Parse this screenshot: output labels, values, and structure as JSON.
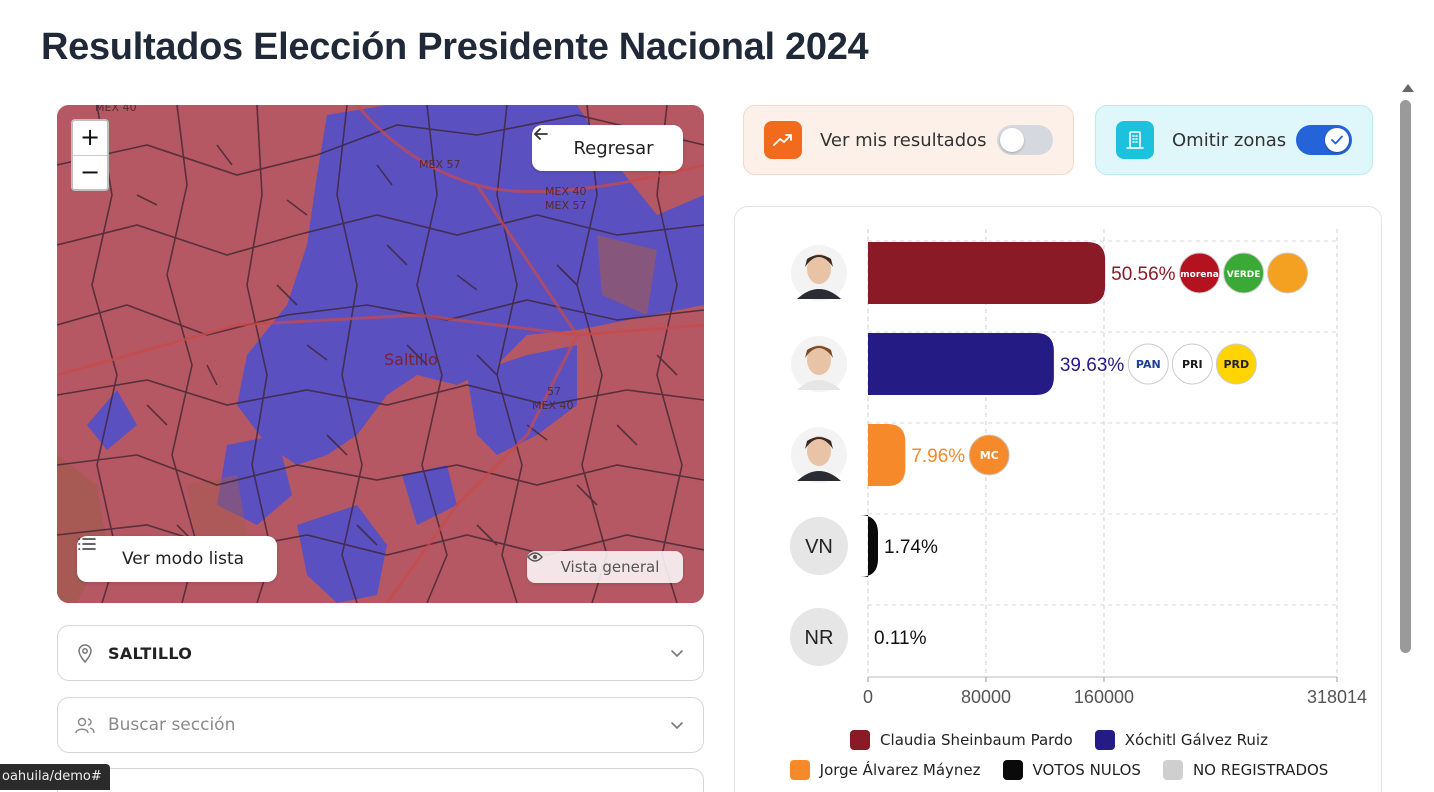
{
  "page": {
    "title": "Resultados Elección Presidente Nacional 2024"
  },
  "map": {
    "zoom_in": "+",
    "zoom_out": "−",
    "back_label": "Regresar",
    "list_mode_label": "Ver modo lista",
    "general_view_label": "Vista general",
    "city_label": "Saltillo",
    "road_labels": [
      "MEX 40",
      "MEX 57",
      "MEX 40",
      "MEX 57",
      "57",
      "MEX 40"
    ],
    "colors": {
      "winner_1": "#b8535f",
      "winner_2": "#5a4fbf"
    }
  },
  "filters": {
    "municipio_value": "SALTILLO",
    "seccion_placeholder": "Buscar sección",
    "location_icon": "location-pin-icon",
    "people_icon": "users-icon"
  },
  "status_bar": {
    "url": "oahuila/demo#"
  },
  "toggles": {
    "results": {
      "label": "Ver mis resultados",
      "on": false,
      "icon": "trending-up-icon",
      "color": "#f26b1d"
    },
    "zones": {
      "label": "Omitir zonas",
      "on": true,
      "icon": "building-icon",
      "color": "#1cc1de"
    }
  },
  "chart_data": {
    "type": "bar",
    "orientation": "horizontal",
    "categories": [
      "Claudia Sheinbaum Pardo",
      "Xóchitl Gálvez Ruiz",
      "Jorge Álvarez Máynez",
      "VOTOS NULOS",
      "NO REGISTRADOS"
    ],
    "percent_labels": [
      "50.56%",
      "39.63%",
      "7.96%",
      "1.74%",
      "0.11%"
    ],
    "percents": [
      50.56,
      39.63,
      7.96,
      1.74,
      0.11
    ],
    "colors": [
      "#8b1a27",
      "#241b85",
      "#f6892a",
      "#0a0a0a",
      "#cfcfcf"
    ],
    "label_colors": [
      "#8b1a27",
      "#241b85",
      "#f6892a",
      "#111111",
      "#111111"
    ],
    "avatar_text": [
      "",
      "",
      "",
      "VN",
      "NR"
    ],
    "party_logos": [
      [
        "morena",
        "VERDE",
        ""
      ],
      [
        "PAN",
        "PRI",
        "PRD"
      ],
      [
        "MC"
      ],
      [],
      []
    ],
    "x_ticks": [
      "0",
      "80000",
      "160000",
      "318014"
    ],
    "x_tick_values": [
      0,
      80000,
      160000,
      318014
    ],
    "xlim": [
      0,
      318014
    ],
    "grid": true,
    "legend_placement": "bottom"
  }
}
